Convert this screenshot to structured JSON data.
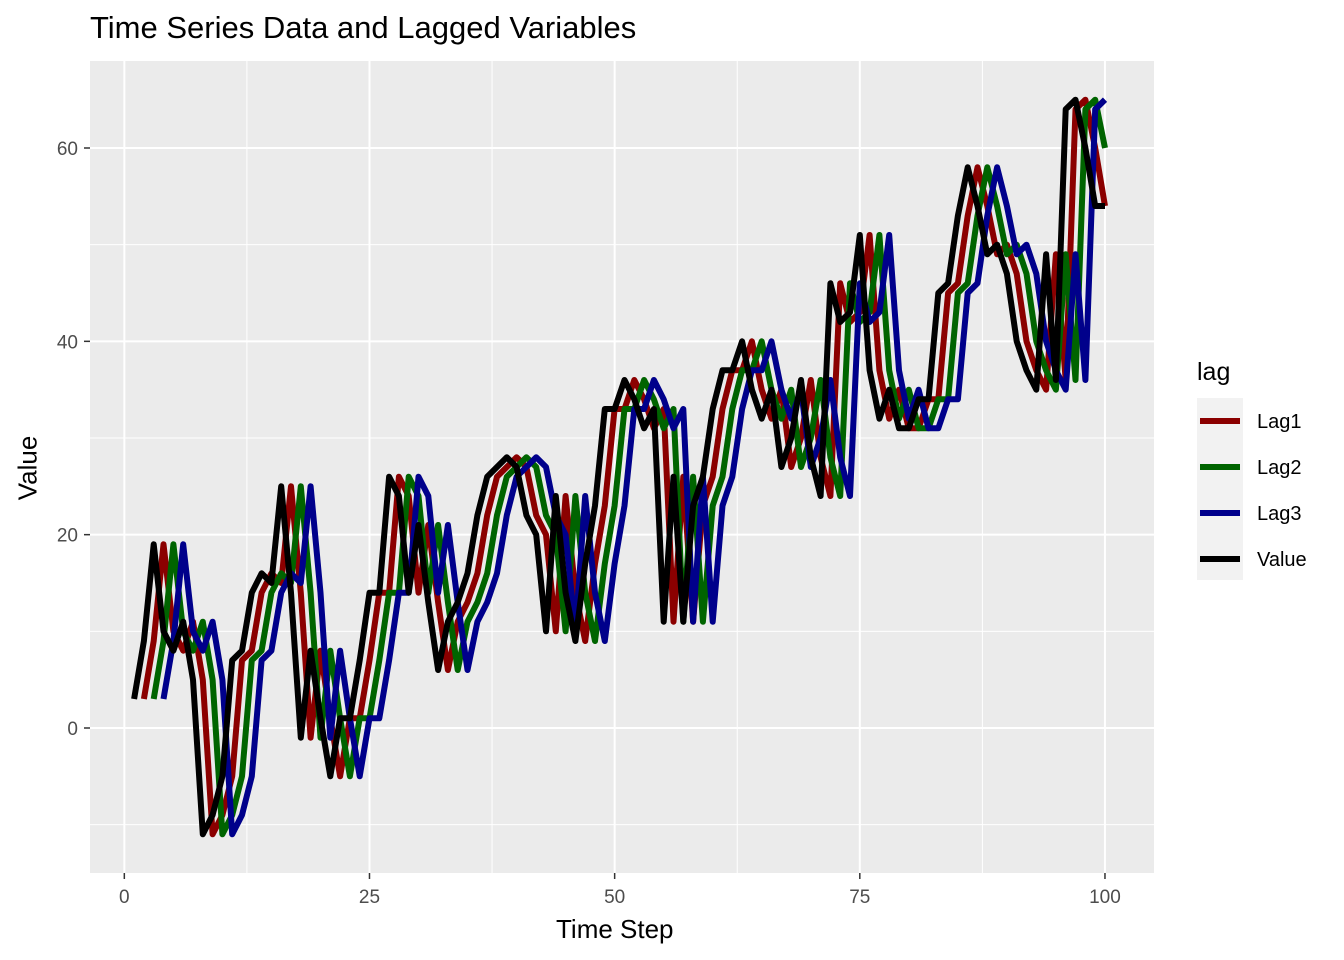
{
  "chart_data": {
    "type": "line",
    "title": "Time Series Data and Lagged Variables",
    "xlabel": "Time Step",
    "ylabel": "Value",
    "xlim": [
      -3.5,
      105
    ],
    "ylim": [
      -15,
      69
    ],
    "x_ticks": [
      0,
      25,
      50,
      75,
      100
    ],
    "x_tick_labels": [
      "0",
      "25",
      "50",
      "75",
      "100"
    ],
    "y_ticks": [
      0,
      20,
      40,
      60
    ],
    "y_tick_labels": [
      "0",
      "20",
      "40",
      "60"
    ],
    "grid": true,
    "legend": {
      "title": "lag",
      "position": "right"
    },
    "x": [
      1,
      2,
      3,
      4,
      5,
      6,
      7,
      8,
      9,
      10,
      11,
      12,
      13,
      14,
      15,
      16,
      17,
      18,
      19,
      20,
      21,
      22,
      23,
      24,
      25,
      26,
      27,
      28,
      29,
      30,
      31,
      32,
      33,
      34,
      35,
      36,
      37,
      38,
      39,
      40,
      41,
      42,
      43,
      44,
      45,
      46,
      47,
      48,
      49,
      50,
      51,
      52,
      53,
      54,
      55,
      56,
      57,
      58,
      59,
      60,
      61,
      62,
      63,
      64,
      65,
      66,
      67,
      68,
      69,
      70,
      71,
      72,
      73,
      74,
      75,
      76,
      77,
      78,
      79,
      80,
      81,
      82,
      83,
      84,
      85,
      86,
      87,
      88,
      89,
      90,
      91,
      92,
      93,
      94,
      95,
      96,
      97,
      98,
      99,
      100
    ],
    "series": [
      {
        "name": "Lag1",
        "color": "#8b0000",
        "offset": 1
      },
      {
        "name": "Lag2",
        "color": "#006400",
        "offset": 2
      },
      {
        "name": "Lag3",
        "color": "#00008b",
        "offset": 3
      },
      {
        "name": "Value",
        "color": "#000000",
        "offset": 0,
        "values": [
          3,
          9,
          19,
          10,
          8,
          11,
          5,
          -11,
          -9,
          -5,
          7,
          8,
          14,
          16,
          15,
          25,
          14,
          -1,
          8,
          1,
          -5,
          1,
          1,
          7,
          14,
          14,
          26,
          24,
          14,
          21,
          13,
          6,
          11,
          13,
          16,
          22,
          26,
          27,
          28,
          27,
          22,
          20,
          10,
          24,
          14,
          9,
          17,
          23,
          33,
          33,
          36,
          34,
          31,
          33,
          11,
          26,
          11,
          23,
          26,
          33,
          37,
          37,
          40,
          35,
          32,
          35,
          27,
          30,
          36,
          28,
          24,
          46,
          42,
          43,
          51,
          37,
          32,
          35,
          31,
          31,
          34,
          34,
          45,
          46,
          53,
          58,
          54,
          49,
          50,
          47,
          40,
          37,
          35,
          49,
          36,
          64,
          65,
          60,
          54,
          54
        ]
      }
    ]
  }
}
